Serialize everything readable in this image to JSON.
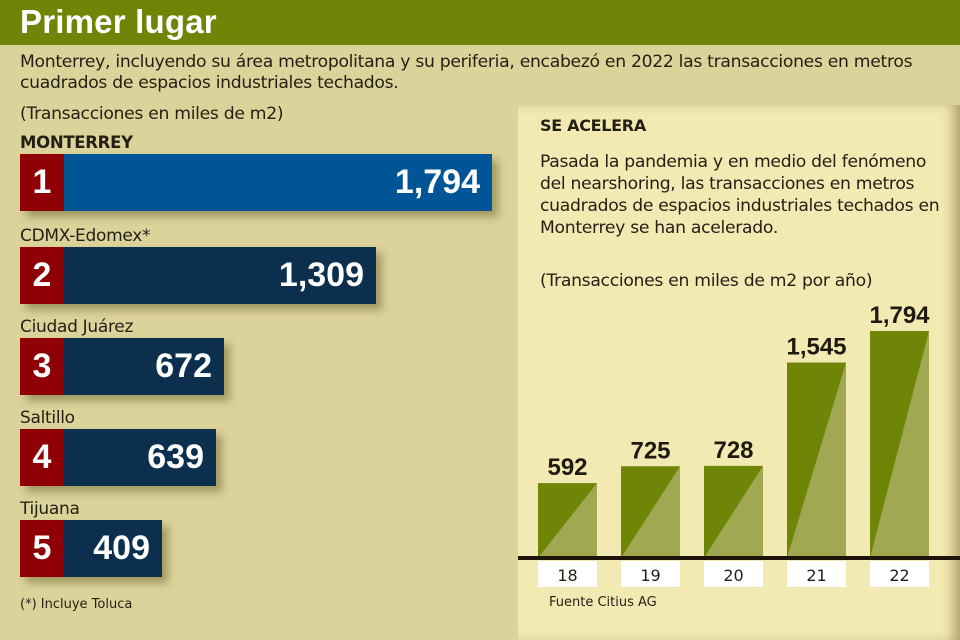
{
  "header": {
    "title": "Primer lugar"
  },
  "intro": "Monterrey, incluyendo su área metropolitana y su periferia, encabezó en 2022 las transacciones en metros cuadrados de espacios industriales techados.",
  "ranking": {
    "units": "(Transacciones en miles de m2)",
    "items": [
      {
        "rank": "1",
        "city": "MONTERREY",
        "value": 1794,
        "label": "1,794"
      },
      {
        "rank": "2",
        "city": "CDMX-Edomex*",
        "value": 1309,
        "label": "1,309"
      },
      {
        "rank": "3",
        "city": "Ciudad Juárez",
        "value": 672,
        "label": "672"
      },
      {
        "rank": "4",
        "city": "Saltillo",
        "value": 639,
        "label": "639"
      },
      {
        "rank": "5",
        "city": "Tijuana",
        "value": 409,
        "label": "409"
      }
    ],
    "footnote": "(*) Incluye Toluca"
  },
  "panel": {
    "title": "SE ACELERA",
    "description": "Pasada la pandemia y en medio del fenómeno del nearshoring, las transacciones en metros cuadrados de espacios industriales techados en Monterrey se han acelerado.",
    "units": "(Transacciones en miles de m2 por año)",
    "source": "Fuente Citius AG"
  },
  "colors": {
    "header": "#6e8508",
    "rank": "#8e0005",
    "bar_top": "#005596",
    "bar": "#0b2f4d",
    "col_dark": "#6e8508",
    "col_light": "#a1a852"
  },
  "chart_data": [
    {
      "type": "bar",
      "orientation": "horizontal",
      "title": "Primer lugar",
      "ylabel": "(Transacciones en miles de m2)",
      "categories": [
        "MONTERREY",
        "CDMX-Edomex*",
        "Ciudad Juárez",
        "Saltillo",
        "Tijuana"
      ],
      "values": [
        1794,
        1309,
        672,
        639,
        409
      ]
    },
    {
      "type": "bar",
      "title": "SE ACELERA",
      "ylabel": "(Transacciones en miles de m2 por año)",
      "categories": [
        "18",
        "19",
        "20",
        "21",
        "22"
      ],
      "values": [
        592,
        725,
        728,
        1545,
        1794
      ],
      "labels": [
        "592",
        "725",
        "728",
        "1,545",
        "1,794"
      ],
      "grid": false
    }
  ]
}
